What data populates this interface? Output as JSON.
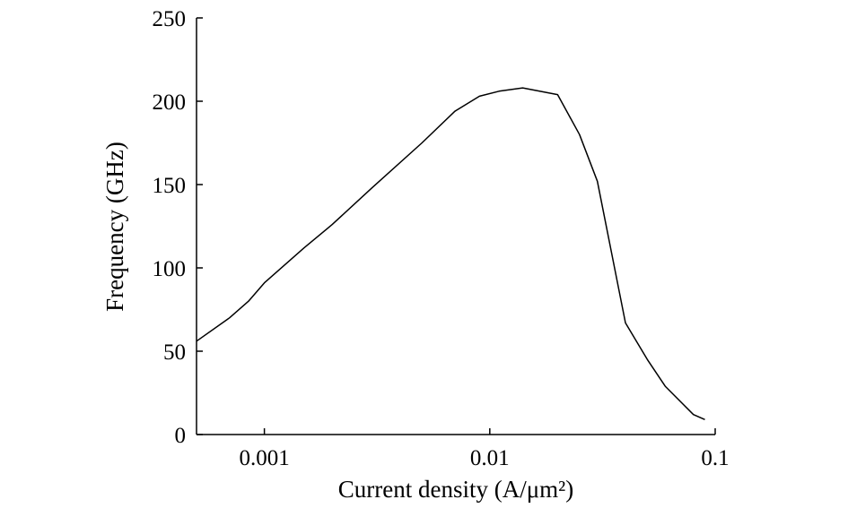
{
  "chart_data": {
    "type": "line",
    "title": "",
    "xlabel": "Current density (A/μm²)",
    "ylabel": "Frequency (GHz)",
    "x_scale": "log",
    "xlim": [
      0.0005,
      0.1
    ],
    "ylim": [
      0,
      250
    ],
    "x_ticks": [
      0.001,
      0.01,
      0.1
    ],
    "x_tick_labels": [
      "0.001",
      "0.01",
      "0.1"
    ],
    "y_ticks": [
      0,
      50,
      100,
      150,
      200,
      250
    ],
    "y_tick_labels": [
      "0",
      "50",
      "100",
      "150",
      "200",
      "250"
    ],
    "grid": false,
    "legend": "none",
    "series": [
      {
        "color": "#000000",
        "x": [
          0.0005,
          0.0007,
          0.00085,
          0.001,
          0.0015,
          0.002,
          0.003,
          0.005,
          0.007,
          0.009,
          0.011,
          0.014,
          0.02,
          0.025,
          0.03,
          0.04,
          0.05,
          0.06,
          0.08,
          0.09
        ],
        "y": [
          56,
          70,
          80,
          91,
          112,
          126,
          148,
          175,
          194,
          203,
          206,
          208,
          204,
          180,
          152,
          67,
          45,
          29,
          12,
          9
        ]
      }
    ]
  }
}
